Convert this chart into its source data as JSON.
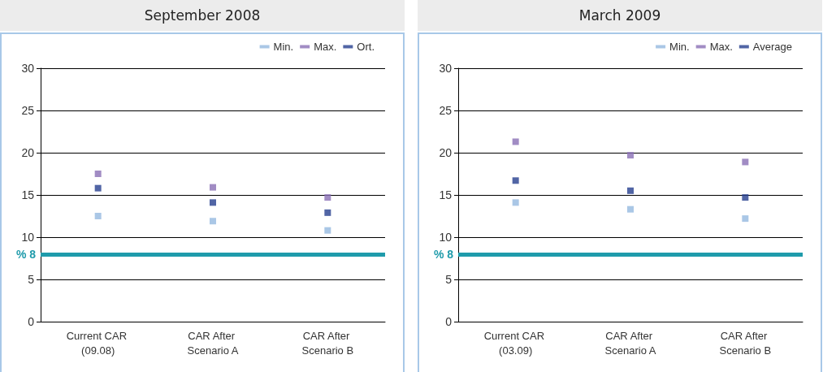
{
  "chart_data": [
    {
      "type": "scatter",
      "title": "September 2008",
      "categories": [
        "Current CAR (09.08)",
        "CAR After Scenario A",
        "CAR After Scenario B"
      ],
      "series": [
        {
          "name": "Min.",
          "color": "#95b9e0",
          "values": [
            12.5,
            11.9,
            10.8
          ]
        },
        {
          "name": "Max.",
          "color": "#8a6fb5",
          "values": [
            17.5,
            15.9,
            14.7
          ]
        },
        {
          "name": "Ort.",
          "color": "#253f8f",
          "values": [
            15.8,
            14.1,
            12.9
          ]
        }
      ],
      "ylim": [
        0,
        30
      ],
      "yticks": [
        0,
        5,
        10,
        15,
        20,
        25,
        30
      ],
      "grid": "y",
      "legend": "top right",
      "marker": "square",
      "ref_lines": [
        {
          "axis": "y",
          "value": 8,
          "label": "% 8",
          "color": "#1f9bab"
        }
      ]
    },
    {
      "type": "scatter",
      "title": "March 2009",
      "categories": [
        "Current CAR (03.09)",
        "CAR After Scenario A",
        "CAR After Scenario B"
      ],
      "series": [
        {
          "name": "Min.",
          "color": "#95b9e0",
          "values": [
            14.1,
            13.3,
            12.2
          ]
        },
        {
          "name": "Max.",
          "color": "#8a6fb5",
          "values": [
            21.3,
            19.7,
            18.9
          ]
        },
        {
          "name": "Average",
          "color": "#253f8f",
          "values": [
            16.7,
            15.5,
            14.7
          ]
        }
      ],
      "ylim": [
        0,
        30
      ],
      "yticks": [
        0,
        5,
        10,
        15,
        20,
        25,
        30
      ],
      "grid": "y",
      "legend": "top right",
      "marker": "square",
      "ref_lines": [
        {
          "axis": "y",
          "value": 8,
          "label": "% 8",
          "color": "#1f9bab"
        }
      ]
    }
  ]
}
